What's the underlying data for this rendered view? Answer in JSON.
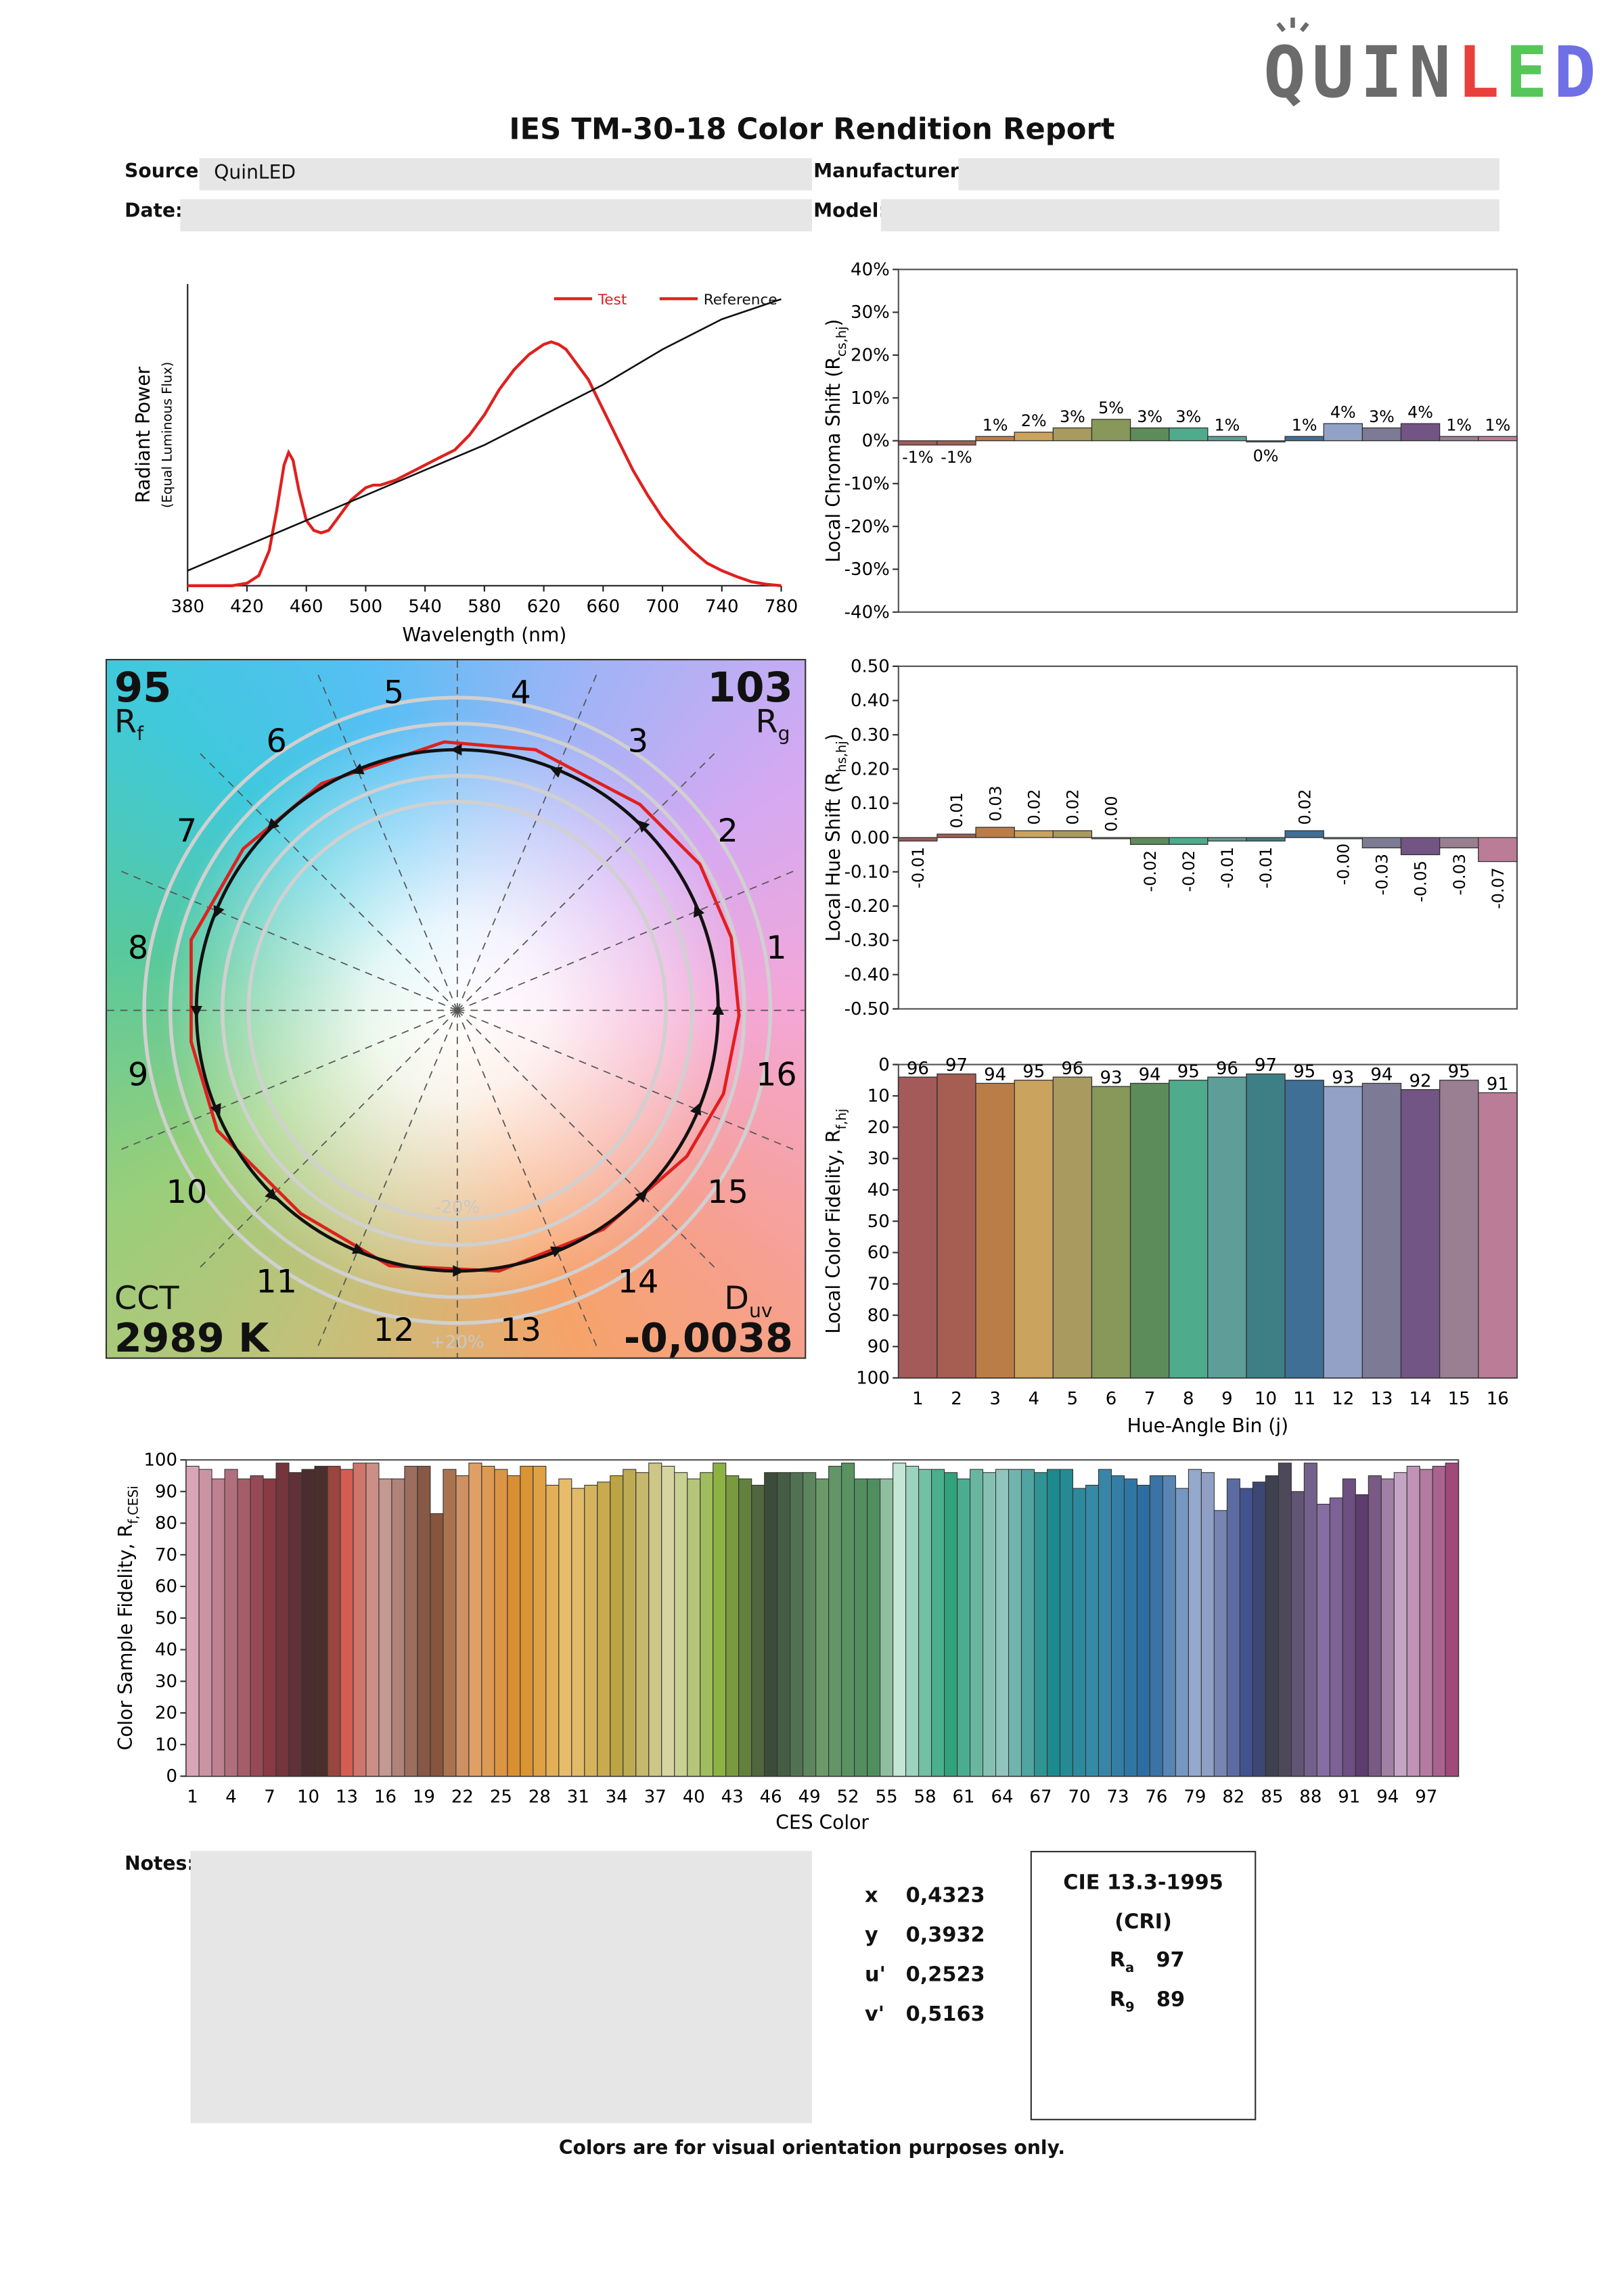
{
  "logo": {
    "letters": [
      "Q",
      "U",
      "I",
      "N",
      "L",
      "E",
      "D"
    ],
    "colors": [
      "#6b6b6b",
      "#6b6b6b",
      "#6b6b6b",
      "#6b6b6b",
      "#e8403c",
      "#57c65a",
      "#6f70e6"
    ]
  },
  "report": {
    "title": "IES TM-30-18 Color Rendition Report",
    "source_label": "Source:",
    "source_value": "QuinLED",
    "manufacturer_label": "Manufacturer:",
    "manufacturer_value": "",
    "date_label": "Date:",
    "date_value": "",
    "model_label": "Model:",
    "model_value": "",
    "notes_label": "Notes:",
    "notes_value": "",
    "footer": "Colors are for visual orientation purposes only."
  },
  "metrics": {
    "Rf": "95",
    "Rf_label": "R",
    "Rf_sub": "f",
    "Rg": "103",
    "Rg_label": "R",
    "Rg_sub": "g",
    "CCT_label": "CCT",
    "CCT": "2989 K",
    "Duv_label": "D",
    "Duv_sub": "uv",
    "Duv": "-0,0038",
    "ring_labels": [
      "-20%",
      "+20%"
    ]
  },
  "chromaticity": {
    "x_label": "x",
    "x": "0,4323",
    "y_label": "y",
    "y": "0,3932",
    "u_label": "u'",
    "u": "0,2523",
    "v_label": "v'",
    "v": "0,5163"
  },
  "cri": {
    "title": "CIE 13.3-1995",
    "subtitle": "(CRI)",
    "Ra_label": "R",
    "Ra_sub": "a",
    "Ra": "97",
    "R9_label": "R",
    "R9_sub": "9",
    "R9": "89"
  },
  "bin_colors": [
    "#a35a58",
    "#a65e52",
    "#bb7d48",
    "#caa35e",
    "#a99a60",
    "#87985a",
    "#5d8c5b",
    "#4eab8c",
    "#5e9e98",
    "#3e7f85",
    "#3f6f95",
    "#94a1c7",
    "#7d7a96",
    "#725584",
    "#997f91",
    "#bb7c98"
  ],
  "chart_data": [
    {
      "id": "spd",
      "type": "line",
      "xlabel": "Wavelength (nm)",
      "ylabel": "Radiant Power",
      "ylabel_sub": "(Equal Luminous Flux)",
      "xlim": [
        380,
        780
      ],
      "xticks": [
        380,
        420,
        460,
        500,
        540,
        580,
        620,
        660,
        700,
        740,
        780
      ],
      "legend": [
        "Test",
        "Reference"
      ],
      "series": [
        {
          "name": "Test",
          "color": "#e0201e",
          "x": [
            380,
            400,
            410,
            420,
            428,
            435,
            440,
            445,
            448,
            451,
            455,
            460,
            465,
            470,
            475,
            480,
            490,
            500,
            505,
            510,
            520,
            530,
            540,
            550,
            560,
            570,
            580,
            590,
            600,
            610,
            620,
            625,
            630,
            635,
            640,
            650,
            660,
            670,
            680,
            690,
            700,
            710,
            720,
            730,
            740,
            750,
            760,
            770,
            780
          ],
          "y": [
            0,
            0,
            0,
            0.005,
            0.02,
            0.07,
            0.15,
            0.24,
            0.265,
            0.25,
            0.19,
            0.13,
            0.11,
            0.105,
            0.11,
            0.13,
            0.17,
            0.195,
            0.2,
            0.2,
            0.21,
            0.225,
            0.24,
            0.255,
            0.27,
            0.3,
            0.34,
            0.39,
            0.43,
            0.46,
            0.48,
            0.485,
            0.48,
            0.47,
            0.45,
            0.41,
            0.35,
            0.29,
            0.23,
            0.18,
            0.135,
            0.1,
            0.07,
            0.045,
            0.03,
            0.018,
            0.008,
            0.003,
            0
          ]
        },
        {
          "name": "Reference",
          "color": "#111111",
          "x": [
            380,
            420,
            460,
            500,
            540,
            580,
            620,
            660,
            700,
            740,
            780
          ],
          "y": [
            0.03,
            0.08,
            0.13,
            0.18,
            0.23,
            0.28,
            0.34,
            0.4,
            0.47,
            0.53,
            0.57
          ]
        }
      ]
    },
    {
      "id": "chroma",
      "type": "bar",
      "ylabel": "Local Chroma Shift (R",
      "ylabel_sub": "cs,hj",
      "ylim": [
        -0.4,
        0.4
      ],
      "yticks": [
        "40%",
        "30%",
        "20%",
        "10%",
        "0%",
        "-10%",
        "-20%",
        "-30%",
        "-40%"
      ],
      "categories": [
        1,
        2,
        3,
        4,
        5,
        6,
        7,
        8,
        9,
        10,
        11,
        12,
        13,
        14,
        15,
        16
      ],
      "values": [
        -0.01,
        -0.01,
        0.01,
        0.02,
        0.03,
        0.05,
        0.03,
        0.03,
        0.01,
        0.0,
        0.01,
        0.04,
        0.03,
        0.04,
        0.01,
        0.01
      ],
      "labels": [
        "-1%",
        "-1%",
        "1%",
        "2%",
        "3%",
        "5%",
        "3%",
        "3%",
        "1%",
        "0%",
        "1%",
        "4%",
        "3%",
        "4%",
        "1%",
        "1%"
      ]
    },
    {
      "id": "hue",
      "type": "bar",
      "ylabel": "Local Hue Shift (R",
      "ylabel_sub": "hs,hj",
      "ylim": [
        -0.5,
        0.5
      ],
      "yticks": [
        "0.50",
        "0.40",
        "0.30",
        "0.20",
        "0.10",
        "0.00",
        "-0.10",
        "-0.20",
        "-0.30",
        "-0.40",
        "-0.50"
      ],
      "categories": [
        1,
        2,
        3,
        4,
        5,
        6,
        7,
        8,
        9,
        10,
        11,
        12,
        13,
        14,
        15,
        16
      ],
      "values": [
        -0.01,
        0.01,
        0.03,
        0.02,
        0.02,
        0.0,
        -0.02,
        -0.02,
        -0.01,
        -0.01,
        0.02,
        -0.0,
        -0.03,
        -0.05,
        -0.03,
        -0.07
      ],
      "labels": [
        "-0.01",
        "0.01",
        "0.03",
        "0.02",
        "0.02",
        "0.00",
        "-0.02",
        "-0.02",
        "-0.01",
        "-0.01",
        "0.02",
        "-0.00",
        "-0.03",
        "-0.05",
        "-0.03",
        "-0.07"
      ]
    },
    {
      "id": "fidelity",
      "type": "bar",
      "xlabel": "Hue-Angle Bin (j)",
      "ylabel": "Local Color Fidelity, R",
      "ylabel_sub": "f,hj",
      "ylim": [
        0,
        100
      ],
      "yticks": [
        0,
        10,
        20,
        30,
        40,
        50,
        60,
        70,
        80,
        90,
        100
      ],
      "categories": [
        1,
        2,
        3,
        4,
        5,
        6,
        7,
        8,
        9,
        10,
        11,
        12,
        13,
        14,
        15,
        16
      ],
      "values": [
        96,
        97,
        94,
        95,
        96,
        93,
        94,
        95,
        96,
        97,
        95,
        93,
        94,
        92,
        95,
        91
      ]
    },
    {
      "id": "ces",
      "type": "bar",
      "xlabel": "CES Color",
      "ylabel": "Color Sample Fidelity, R",
      "ylabel_sub": "f,CESi",
      "ylim": [
        0,
        100
      ],
      "yticks": [
        0,
        10,
        20,
        30,
        40,
        50,
        60,
        70,
        80,
        90,
        100
      ],
      "xticks": [
        1,
        4,
        7,
        10,
        13,
        16,
        19,
        22,
        25,
        28,
        31,
        34,
        37,
        40,
        43,
        46,
        49,
        52,
        55,
        58,
        61,
        64,
        67,
        70,
        73,
        76,
        79,
        82,
        85,
        88,
        91,
        94,
        97
      ],
      "values": [
        98,
        97,
        94,
        97,
        94,
        95,
        94,
        99,
        96,
        97,
        98,
        98,
        97,
        99,
        99,
        94,
        94,
        98,
        98,
        83,
        97,
        95,
        99,
        98,
        97,
        95,
        98,
        98,
        92,
        94,
        91,
        92,
        93,
        95,
        97,
        96,
        99,
        98,
        96,
        94,
        96,
        99,
        95,
        94,
        92,
        96,
        96,
        96,
        96,
        94,
        98,
        99,
        94,
        94,
        94,
        99,
        98,
        97,
        97,
        96,
        94,
        97,
        96,
        97,
        97,
        97,
        96,
        97,
        97,
        91,
        92,
        97,
        95,
        94,
        92,
        95,
        95,
        91,
        97,
        96,
        84,
        94,
        91,
        93,
        95,
        99,
        90,
        99,
        86,
        88,
        94,
        89,
        95,
        94,
        96,
        98,
        97,
        98,
        99
      ]
    },
    {
      "id": "vector",
      "type": "scatter",
      "series": [
        {
          "name": "Test",
          "color": "#e0201e",
          "points": [
            [
              1.08,
              -0.02
            ],
            [
              1.05,
              0.28
            ],
            [
              0.93,
              0.56
            ],
            [
              0.7,
              0.79
            ],
            [
              0.3,
              1.0
            ],
            [
              -0.05,
              1.03
            ],
            [
              -0.52,
              0.87
            ],
            [
              -0.82,
              0.62
            ],
            [
              -1.02,
              0.27
            ],
            [
              -1.02,
              -0.12
            ],
            [
              -0.92,
              -0.46
            ],
            [
              -0.6,
              -0.78
            ],
            [
              -0.26,
              -0.98
            ],
            [
              0.16,
              -1.0
            ],
            [
              0.56,
              -0.84
            ],
            [
              0.88,
              -0.56
            ],
            [
              1.02,
              -0.32
            ]
          ]
        },
        {
          "name": "Reference",
          "color": "#111111",
          "points": [
            [
              1.0,
              0.0
            ],
            [
              0.92,
              0.38
            ],
            [
              0.71,
              0.71
            ],
            [
              0.38,
              0.92
            ],
            [
              0.0,
              1.0
            ],
            [
              -0.38,
              0.92
            ],
            [
              -0.71,
              0.71
            ],
            [
              -0.92,
              0.38
            ],
            [
              -1.0,
              0.0
            ],
            [
              -0.92,
              -0.38
            ],
            [
              -0.71,
              -0.71
            ],
            [
              -0.38,
              -0.92
            ],
            [
              0.0,
              -1.0
            ],
            [
              0.38,
              -0.92
            ],
            [
              0.71,
              -0.71
            ],
            [
              0.92,
              -0.38
            ]
          ]
        }
      ],
      "bin_labels": [
        "1",
        "2",
        "3",
        "4",
        "5",
        "6",
        "7",
        "8",
        "9",
        "10",
        "11",
        "12",
        "13",
        "14",
        "15",
        "16"
      ]
    }
  ]
}
